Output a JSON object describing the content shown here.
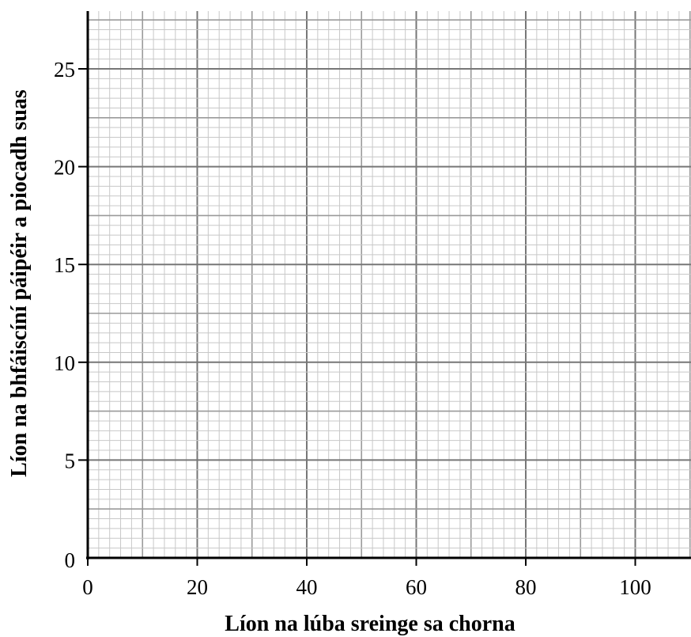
{
  "chart_data": {
    "type": "scatter",
    "title": "",
    "xlabel": "Líon na lúba sreinge sa chorna",
    "ylabel": "Líon na bhfáiscíní páipéir a piocadh suas",
    "xlim": [
      0,
      110
    ],
    "ylim": [
      0,
      28
    ],
    "x_ticks": [
      "0",
      "20",
      "40",
      "60",
      "80",
      "100"
    ],
    "y_ticks": [
      "0",
      "5",
      "10",
      "15",
      "20",
      "25"
    ],
    "grid": true,
    "series": []
  }
}
